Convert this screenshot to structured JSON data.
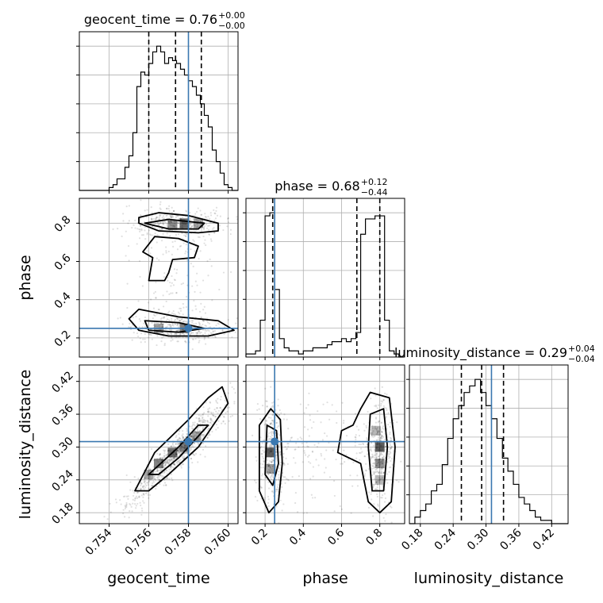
{
  "chart_data": {
    "type": "corner",
    "parameters": [
      "geocent_time",
      "phase",
      "luminosity_distance"
    ],
    "truths": {
      "geocent_time": 0.758,
      "phase": 0.25,
      "luminosity_distance": 0.31
    },
    "truth_color": "#3a78b0",
    "ranges": {
      "geocent_time": [
        0.7525,
        0.7605
      ],
      "phase": [
        0.1,
        0.93
      ],
      "luminosity_distance": [
        0.16,
        0.45
      ]
    },
    "xticks": {
      "geocent_time": {
        "values": [
          0.754,
          0.756,
          0.758,
          0.76
        ],
        "labels": [
          "0.754",
          "0.756",
          "0.758",
          "0.760"
        ]
      },
      "phase": {
        "values": [
          0.2,
          0.4,
          0.6,
          0.8
        ],
        "labels": [
          "0.2",
          "0.4",
          "0.6",
          "0.8"
        ]
      },
      "luminosity_distance": {
        "values": [
          0.18,
          0.24,
          0.3,
          0.36,
          0.42
        ],
        "labels": [
          "0.18",
          "0.24",
          "0.30",
          "0.36",
          "0.42"
        ]
      }
    },
    "yticks": {
      "phase": {
        "values": [
          0.2,
          0.4,
          0.6,
          0.8
        ],
        "labels": [
          "0.2",
          "0.4",
          "0.6",
          "0.8"
        ]
      },
      "luminosity_distance": {
        "values": [
          0.18,
          0.24,
          0.3,
          0.36,
          0.42
        ],
        "labels": [
          "0.18",
          "0.24",
          "0.30",
          "0.36",
          "0.42"
        ]
      }
    },
    "titles": [
      {
        "param": "geocent_time",
        "text": "geocent_time = 0.76",
        "upper": "+0.00",
        "lower": "−0.00"
      },
      {
        "param": "phase",
        "text": "phase = 0.68",
        "upper": "+0.12",
        "lower": "−0.44"
      },
      {
        "param": "luminosity_distance",
        "text": "luminosity_distance = 0.29",
        "upper": "+0.04",
        "lower": "−0.04"
      }
    ],
    "quantiles": {
      "geocent_time": [
        0.756,
        0.75735,
        0.75865
      ],
      "phase": [
        0.24,
        0.68,
        0.8
      ],
      "luminosity_distance": [
        0.255,
        0.292,
        0.332
      ]
    },
    "histograms": {
      "geocent_time": {
        "edges": [
          0.7525,
          0.753,
          0.7535,
          0.754,
          0.7542,
          0.7544,
          0.7546,
          0.7548,
          0.755,
          0.7552,
          0.7554,
          0.7556,
          0.7558,
          0.756,
          0.7562,
          0.7564,
          0.7566,
          0.7568,
          0.757,
          0.7572,
          0.7574,
          0.7576,
          0.7578,
          0.758,
          0.7582,
          0.7584,
          0.7586,
          0.7588,
          0.759,
          0.7592,
          0.7594,
          0.7596,
          0.7598,
          0.76,
          0.7602,
          0.7605
        ],
        "counts": [
          0,
          0,
          0,
          1,
          2,
          4,
          4,
          8,
          12,
          20,
          36,
          41,
          40,
          44,
          48,
          50,
          48,
          44,
          46,
          45,
          44,
          42,
          40,
          38,
          36,
          33,
          30,
          26,
          22,
          14,
          10,
          6,
          2,
          1,
          0
        ]
      },
      "phase": {
        "edges": [
          0.1,
          0.125,
          0.15,
          0.175,
          0.2,
          0.225,
          0.25,
          0.275,
          0.3,
          0.325,
          0.35,
          0.375,
          0.4,
          0.425,
          0.45,
          0.475,
          0.5,
          0.525,
          0.55,
          0.575,
          0.6,
          0.625,
          0.65,
          0.675,
          0.7,
          0.725,
          0.75,
          0.775,
          0.8,
          0.825,
          0.85,
          0.875,
          0.9,
          0.925
        ],
        "counts": [
          1,
          1,
          2,
          12,
          46,
          47,
          22,
          6,
          3,
          2,
          2,
          1,
          2,
          2,
          3,
          3,
          3,
          4,
          5,
          5,
          6,
          5,
          6,
          8,
          40,
          45,
          45,
          46,
          46,
          12,
          2,
          1,
          0
        ]
      },
      "luminosity_distance": {
        "edges": [
          0.16,
          0.17,
          0.18,
          0.19,
          0.2,
          0.21,
          0.22,
          0.23,
          0.24,
          0.25,
          0.26,
          0.27,
          0.28,
          0.29,
          0.3,
          0.31,
          0.32,
          0.33,
          0.34,
          0.35,
          0.36,
          0.37,
          0.38,
          0.39,
          0.4,
          0.41,
          0.42,
          0.43,
          0.44,
          0.45
        ],
        "counts": [
          0,
          2,
          4,
          6,
          10,
          12,
          18,
          26,
          32,
          36,
          40,
          42,
          44,
          40,
          36,
          32,
          26,
          20,
          16,
          12,
          8,
          6,
          4,
          2,
          1,
          1,
          0,
          0,
          0
        ]
      }
    },
    "contours": {
      "geocent_time|phase": [
        {
          "level": 1,
          "points": [
            [
              0.7555,
              0.83
            ],
            [
              0.7565,
              0.855
            ],
            [
              0.758,
              0.84
            ],
            [
              0.7595,
              0.8
            ],
            [
              0.7595,
              0.76
            ],
            [
              0.7585,
              0.75
            ],
            [
              0.7565,
              0.76
            ],
            [
              0.7555,
              0.8
            ]
          ]
        },
        {
          "level": 1,
          "points": [
            [
              0.7558,
              0.8
            ],
            [
              0.757,
              0.82
            ],
            [
              0.7588,
              0.8
            ],
            [
              0.7585,
              0.77
            ],
            [
              0.757,
              0.77
            ]
          ]
        },
        {
          "level": 1,
          "points": [
            [
              0.7563,
              0.73
            ],
            [
              0.7575,
              0.72
            ],
            [
              0.7585,
              0.68
            ],
            [
              0.7583,
              0.62
            ],
            [
              0.7572,
              0.61
            ],
            [
              0.757,
              0.54
            ],
            [
              0.7568,
              0.5
            ],
            [
              0.756,
              0.5
            ],
            [
              0.7562,
              0.62
            ],
            [
              0.7557,
              0.65
            ]
          ]
        },
        {
          "level": 1,
          "points": [
            [
              0.7555,
              0.35
            ],
            [
              0.7575,
              0.31
            ],
            [
              0.7595,
              0.29
            ],
            [
              0.7603,
              0.24
            ],
            [
              0.759,
              0.21
            ],
            [
              0.757,
              0.21
            ],
            [
              0.7555,
              0.24
            ],
            [
              0.755,
              0.3
            ]
          ]
        },
        {
          "level": 1,
          "points": [
            [
              0.7558,
              0.29
            ],
            [
              0.7575,
              0.28
            ],
            [
              0.7588,
              0.25
            ],
            [
              0.7575,
              0.23
            ],
            [
              0.756,
              0.24
            ]
          ]
        }
      ],
      "geocent_time|luminosity_distance": [
        {
          "level": 1,
          "points": [
            [
              0.7553,
              0.22
            ],
            [
              0.7563,
              0.29
            ],
            [
              0.758,
              0.35
            ],
            [
              0.759,
              0.39
            ],
            [
              0.7597,
              0.41
            ],
            [
              0.76,
              0.38
            ],
            [
              0.7585,
              0.3
            ],
            [
              0.757,
              0.25
            ],
            [
              0.756,
              0.22
            ]
          ]
        },
        {
          "level": 1,
          "points": [
            [
              0.756,
              0.25
            ],
            [
              0.7575,
              0.3
            ],
            [
              0.7585,
              0.34
            ],
            [
              0.759,
              0.34
            ],
            [
              0.7575,
              0.28
            ],
            [
              0.7565,
              0.25
            ]
          ]
        }
      ],
      "phase|luminosity_distance": [
        {
          "level": 1,
          "points": [
            [
              0.17,
              0.34
            ],
            [
              0.23,
              0.37
            ],
            [
              0.28,
              0.35
            ],
            [
              0.29,
              0.27
            ],
            [
              0.27,
              0.2
            ],
            [
              0.22,
              0.18
            ],
            [
              0.17,
              0.22
            ]
          ]
        },
        {
          "level": 1,
          "points": [
            [
              0.21,
              0.34
            ],
            [
              0.26,
              0.33
            ],
            [
              0.27,
              0.27
            ],
            [
              0.24,
              0.23
            ],
            [
              0.2,
              0.25
            ]
          ]
        },
        {
          "level": 1,
          "points": [
            [
              0.7,
              0.37
            ],
            [
              0.75,
              0.4
            ],
            [
              0.85,
              0.39
            ],
            [
              0.88,
              0.3
            ],
            [
              0.86,
              0.2
            ],
            [
              0.8,
              0.18
            ],
            [
              0.74,
              0.2
            ],
            [
              0.7,
              0.27
            ],
            [
              0.58,
              0.29
            ],
            [
              0.6,
              0.33
            ],
            [
              0.66,
              0.34
            ]
          ]
        },
        {
          "level": 1,
          "points": [
            [
              0.75,
              0.36
            ],
            [
              0.82,
              0.37
            ],
            [
              0.84,
              0.3
            ],
            [
              0.82,
              0.22
            ],
            [
              0.76,
              0.22
            ],
            [
              0.74,
              0.3
            ]
          ]
        }
      ]
    }
  }
}
